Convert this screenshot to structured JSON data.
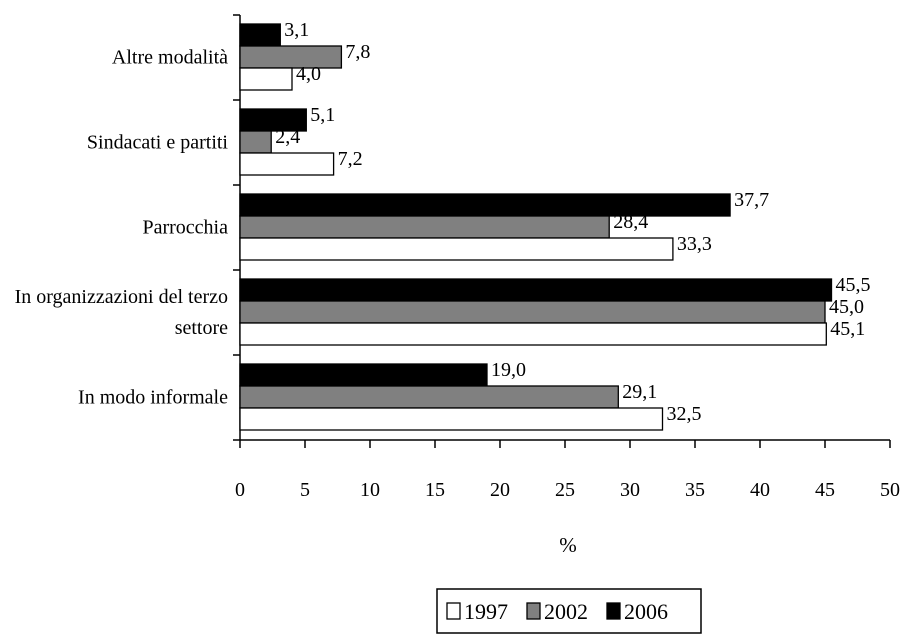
{
  "chart_data": {
    "type": "bar",
    "orientation": "horizontal",
    "title": "",
    "xlabel": "%",
    "ylabel": "",
    "xlim": [
      0,
      50
    ],
    "xticks": [
      0,
      5,
      10,
      15,
      20,
      25,
      30,
      35,
      40,
      45,
      50
    ],
    "grid": false,
    "legend_position": "bottom",
    "categories": [
      [
        "Altre modalità"
      ],
      [
        "Sindacati e partiti"
      ],
      [
        "Parrocchia"
      ],
      [
        "In organizzazioni del terzo",
        "settore"
      ],
      [
        "In modo informale"
      ]
    ],
    "series": [
      {
        "name": "1997",
        "color": "#ffffff",
        "values": [
          4.0,
          7.2,
          33.3,
          45.1,
          32.5
        ],
        "labels": [
          "4,0",
          "7,2",
          "33,3",
          "45,1",
          "32,5"
        ]
      },
      {
        "name": "2002",
        "color": "#808080",
        "values": [
          7.8,
          2.4,
          28.4,
          45.0,
          29.1
        ],
        "labels": [
          "7,8",
          "2,4",
          "28,4",
          "45,0",
          "29,1"
        ]
      },
      {
        "name": "2006",
        "color": "#000000",
        "values": [
          3.1,
          5.1,
          37.7,
          45.5,
          19.0
        ],
        "labels": [
          "3,1",
          "5,1",
          "37,7",
          "45,5",
          "19,0"
        ]
      }
    ]
  }
}
